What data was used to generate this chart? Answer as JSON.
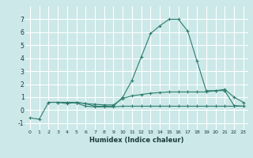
{
  "xlabel": "Humidex (Indice chaleur)",
  "line1_x": [
    0,
    1,
    2,
    3,
    4,
    5,
    6,
    7,
    8,
    9,
    10,
    11,
    12,
    13,
    14,
    15,
    16,
    17,
    18,
    19,
    20,
    21,
    22,
    23
  ],
  "line1_y": [
    -0.6,
    -0.7,
    0.6,
    0.6,
    0.5,
    0.6,
    0.5,
    0.3,
    0.3,
    0.3,
    1.0,
    2.3,
    4.1,
    5.9,
    6.5,
    7.0,
    7.0,
    6.1,
    3.8,
    1.5,
    1.5,
    1.6,
    1.0,
    0.6
  ],
  "line2_x": [
    2,
    3,
    4,
    5,
    6,
    7,
    8,
    9,
    10,
    11,
    12,
    13,
    14,
    15,
    16,
    17,
    18,
    19,
    20,
    21,
    22,
    23
  ],
  "line2_y": [
    0.6,
    0.6,
    0.6,
    0.6,
    0.5,
    0.45,
    0.4,
    0.4,
    0.9,
    1.1,
    1.2,
    1.3,
    1.35,
    1.4,
    1.4,
    1.4,
    1.4,
    1.4,
    1.5,
    1.5,
    0.35,
    0.3
  ],
  "line3_x": [
    4,
    5,
    6,
    7,
    8,
    9,
    10,
    11,
    12,
    13,
    14,
    15,
    16,
    17,
    18,
    19,
    20,
    21,
    22,
    23
  ],
  "line3_y": [
    0.6,
    0.55,
    0.3,
    0.25,
    0.25,
    0.25,
    0.3,
    0.3,
    0.3,
    0.3,
    0.3,
    0.3,
    0.3,
    0.3,
    0.3,
    0.3,
    0.3,
    0.3,
    0.3,
    0.3
  ],
  "ylim": [
    -1.5,
    8.0
  ],
  "xlim": [
    -0.5,
    23.5
  ],
  "line_color": "#2e7d6e",
  "bg_color": "#cce8e8",
  "grid_color": "#ffffff",
  "yticks": [
    -1,
    0,
    1,
    2,
    3,
    4,
    5,
    6,
    7
  ],
  "xticks": [
    0,
    1,
    2,
    3,
    4,
    5,
    6,
    7,
    8,
    9,
    10,
    11,
    12,
    13,
    14,
    15,
    16,
    17,
    18,
    19,
    20,
    21,
    22,
    23
  ]
}
